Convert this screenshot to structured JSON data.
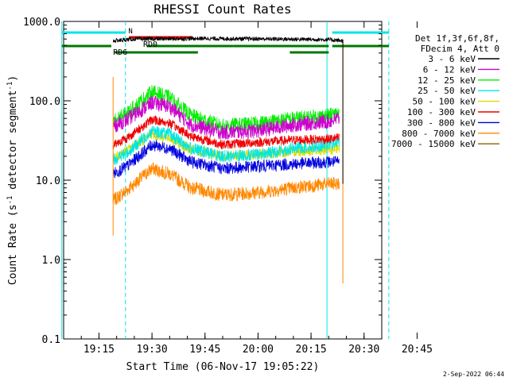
{
  "chart_data": {
    "type": "line",
    "title": "RHESSI Count Rates",
    "xlabel": "Start Time (06-Nov-17 19:05:22)",
    "ylabel_main": "Count Rate (s",
    "ylabel_sup": "-1",
    "ylabel_tail": " detector segment",
    "ylabel_sup2": "-1",
    "ylabel_close": ")",
    "y_scale": "log",
    "ylim": [
      0.1,
      1000.0
    ],
    "xlim_minutes": [
      0,
      90
    ],
    "x_tick_labels": [
      "19:15",
      "19:30",
      "19:45",
      "20:00",
      "20:15",
      "20:30",
      "20:45"
    ],
    "x_tick_minutes": [
      10,
      25,
      40,
      55,
      70,
      85,
      100
    ],
    "y_tick_labels": [
      "0.1",
      "1.0",
      "10.0",
      "100.0",
      "1000.0"
    ],
    "y_tick_values": [
      0.1,
      1,
      10,
      100,
      1000
    ],
    "legend_header": [
      "Det 1f,3f,6f,8f,",
      "FDecim 4, Att 0"
    ],
    "series": [
      {
        "name": "3 - 6 keV",
        "color": "#000000",
        "anchors": [
          [
            14,
            570
          ],
          [
            20,
            600
          ],
          [
            40,
            610
          ],
          [
            60,
            600
          ],
          [
            75,
            590
          ],
          [
            79,
            570
          ]
        ],
        "noise": 0.06
      },
      {
        "name": "6 - 12 keV",
        "color": "#cc00cc",
        "anchors": [
          [
            14,
            48
          ],
          [
            18,
            58
          ],
          [
            25,
            95
          ],
          [
            30,
            85
          ],
          [
            36,
            50
          ],
          [
            45,
            40
          ],
          [
            55,
            42
          ],
          [
            65,
            50
          ],
          [
            75,
            55
          ],
          [
            78,
            60
          ]
        ],
        "noise": 0.22
      },
      {
        "name": "12 - 25 keV",
        "color": "#00ee00",
        "anchors": [
          [
            14,
            55
          ],
          [
            18,
            70
          ],
          [
            25,
            130
          ],
          [
            30,
            110
          ],
          [
            36,
            65
          ],
          [
            45,
            48
          ],
          [
            55,
            52
          ],
          [
            65,
            60
          ],
          [
            75,
            65
          ],
          [
            78,
            70
          ]
        ],
        "noise": 0.22
      },
      {
        "name": "25 - 50 keV",
        "color": "#00e5e5",
        "anchors": [
          [
            14,
            18
          ],
          [
            18,
            22
          ],
          [
            25,
            42
          ],
          [
            30,
            38
          ],
          [
            36,
            25
          ],
          [
            45,
            20
          ],
          [
            55,
            21
          ],
          [
            65,
            25
          ],
          [
            75,
            28
          ],
          [
            78,
            30
          ]
        ],
        "noise": 0.18
      },
      {
        "name": "50 - 100 keV",
        "color": "#dddd00",
        "anchors": [
          [
            14,
            19
          ],
          [
            18,
            24
          ],
          [
            25,
            38
          ],
          [
            30,
            34
          ],
          [
            36,
            24
          ],
          [
            45,
            20
          ],
          [
            55,
            21
          ],
          [
            65,
            23
          ],
          [
            75,
            24
          ],
          [
            78,
            25
          ]
        ],
        "noise": 0.16
      },
      {
        "name": "100 - 300 keV",
        "color": "#ee0000",
        "anchors": [
          [
            14,
            28
          ],
          [
            18,
            34
          ],
          [
            25,
            58
          ],
          [
            30,
            52
          ],
          [
            36,
            36
          ],
          [
            45,
            28
          ],
          [
            55,
            30
          ],
          [
            65,
            32
          ],
          [
            75,
            33
          ],
          [
            78,
            34
          ]
        ],
        "noise": 0.14
      },
      {
        "name": "300 - 800 keV",
        "color": "#0000dd",
        "anchors": [
          [
            14,
            12
          ],
          [
            18,
            15
          ],
          [
            25,
            28
          ],
          [
            30,
            25
          ],
          [
            36,
            17
          ],
          [
            45,
            14
          ],
          [
            55,
            15
          ],
          [
            65,
            16
          ],
          [
            75,
            17
          ],
          [
            78,
            17
          ]
        ],
        "noise": 0.18
      },
      {
        "name": "800 - 7000 keV",
        "color": "#ff8800",
        "anchors": [
          [
            14,
            5.5
          ],
          [
            18,
            7.5
          ],
          [
            25,
            14
          ],
          [
            30,
            12
          ],
          [
            36,
            8
          ],
          [
            45,
            6.5
          ],
          [
            55,
            7
          ],
          [
            65,
            8
          ],
          [
            75,
            9
          ],
          [
            78,
            9
          ]
        ],
        "noise": 0.2
      },
      {
        "name": "7000 - 15000 keV",
        "color": "#886600",
        "anchors": [],
        "noise": 0
      }
    ],
    "annotations": {
      "attenuator_label": "N",
      "rd0_label": "RD0",
      "rd6_label": "RD6"
    }
  },
  "footer": {
    "date_stamp": "2-Sep-2022 06:44"
  }
}
